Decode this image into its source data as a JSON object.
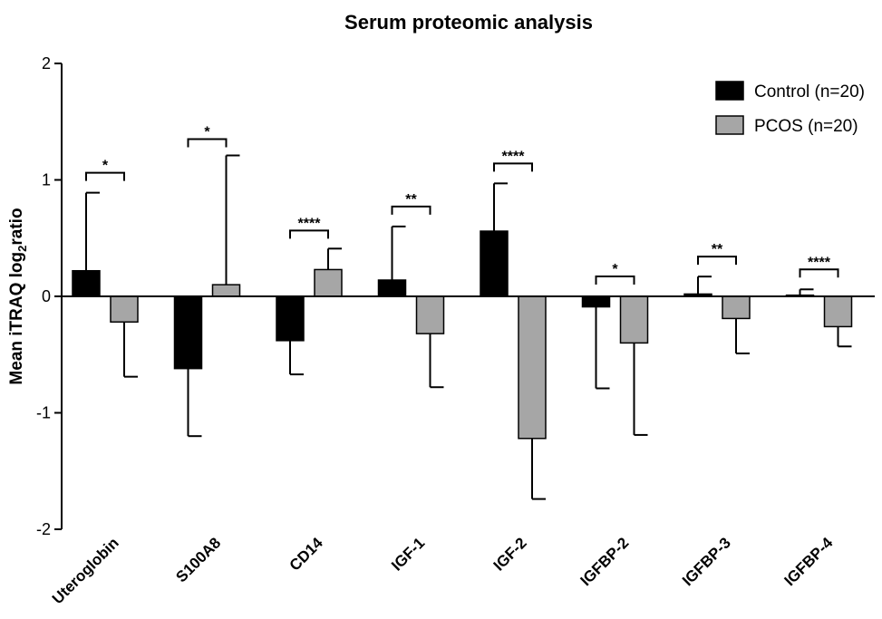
{
  "chart_data": {
    "type": "bar",
    "title": "Serum proteomic analysis",
    "ylabel": {
      "main": "Mean iTRAQ log",
      "sub": "2",
      "tail": "ratio"
    },
    "xlabel": "",
    "ylim": [
      -2,
      2
    ],
    "yticks": [
      {
        "value": 2,
        "label": "2"
      },
      {
        "value": 1,
        "label": "1"
      },
      {
        "value": 0,
        "label": "0"
      },
      {
        "value": -1,
        "label": "-1"
      },
      {
        "value": -2,
        "label": "-2"
      }
    ],
    "categories": [
      "Uteroglobin",
      "S100A8",
      "CD14",
      "IGF-1",
      "IGF-2",
      "IGFBP-2",
      "IGFBP-3",
      "IGFBP-4"
    ],
    "series": [
      {
        "name": "Control (n=20)",
        "color": "#000000",
        "values": [
          0.22,
          -0.62,
          -0.38,
          0.14,
          0.56,
          -0.09,
          0.02,
          0.01
        ],
        "errors": [
          0.67,
          0.58,
          0.29,
          0.46,
          0.41,
          0.7,
          0.15,
          0.05
        ]
      },
      {
        "name": "PCOS (n=20)",
        "color": "#a6a6a6",
        "values": [
          -0.22,
          0.1,
          0.23,
          -0.32,
          -1.22,
          -0.4,
          -0.19,
          -0.26
        ],
        "errors": [
          0.47,
          1.11,
          0.18,
          0.46,
          0.52,
          0.79,
          0.3,
          0.17
        ]
      }
    ],
    "significance": [
      "*",
      "*",
      "****",
      "**",
      "****",
      "*",
      "**",
      "****"
    ],
    "legend_position": "top-right",
    "grid": false
  }
}
